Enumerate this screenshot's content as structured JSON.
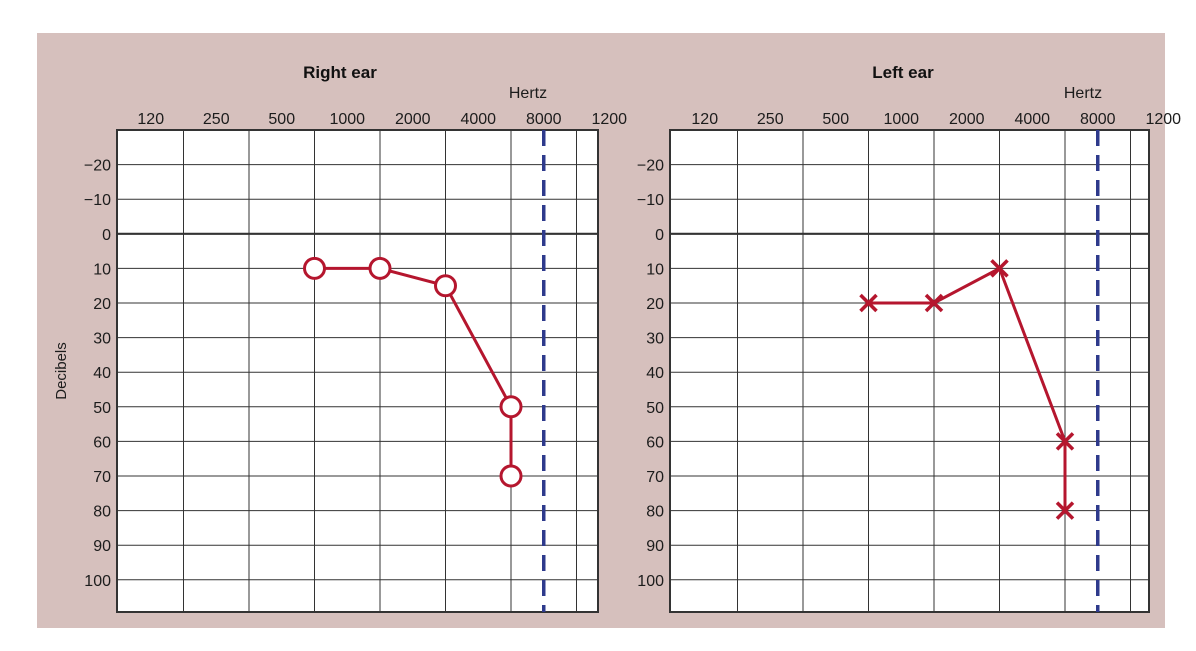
{
  "colors": {
    "panel_bg": "#d6c0bd",
    "plot_bg": "#ffffff",
    "grid": "#333333",
    "series": "#b5162e",
    "dashed": "#2e3a8c"
  },
  "chart_data": [
    {
      "type": "line",
      "title": "Right ear",
      "x_unit_label": "Hertz",
      "ylabel": "Decibels",
      "x_tick_labels": [
        "120",
        "250",
        "500",
        "1000",
        "2000",
        "4000",
        "8000",
        "1200"
      ],
      "y_tick_labels": [
        "-20",
        "-10",
        "0",
        "10",
        "20",
        "30",
        "40",
        "50",
        "60",
        "70",
        "80",
        "90",
        "100"
      ],
      "y_range": [
        -30,
        110
      ],
      "y_inverted": true,
      "dashed_reference_x": "8000",
      "series": [
        {
          "marker": "circle",
          "x": [
            "500",
            "1000",
            "2000",
            "4000",
            "8000"
          ],
          "y": [
            10,
            10,
            15,
            50,
            70
          ]
        }
      ]
    },
    {
      "type": "line",
      "title": "Left ear",
      "x_unit_label": "Hertz",
      "ylabel": "",
      "x_tick_labels": [
        "120",
        "250",
        "500",
        "1000",
        "2000",
        "4000",
        "8000",
        "1200"
      ],
      "y_tick_labels": [
        "-20",
        "-10",
        "0",
        "10",
        "20",
        "30",
        "40",
        "50",
        "60",
        "70",
        "80",
        "90",
        "100"
      ],
      "y_range": [
        -30,
        110
      ],
      "y_inverted": true,
      "dashed_reference_x": "8000",
      "series": [
        {
          "marker": "x",
          "x": [
            "500",
            "1000",
            "2000",
            "4000",
            "8000"
          ],
          "y": [
            20,
            20,
            10,
            60,
            80
          ]
        }
      ]
    }
  ]
}
